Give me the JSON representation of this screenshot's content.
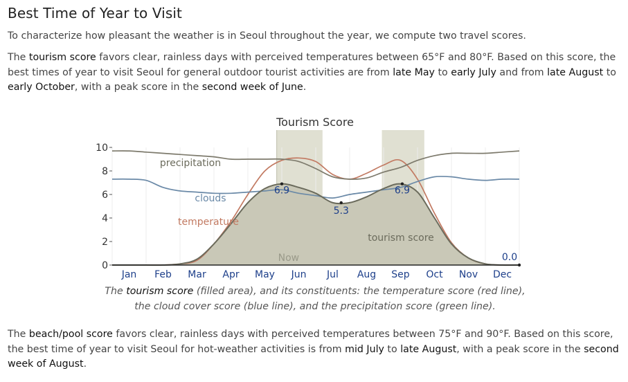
{
  "heading": "Best Time of Year to Visit",
  "intro": "To characterize how pleasant the weather is in Seoul throughout the year, we compute two travel scores.",
  "tourism_paragraph": {
    "p1": "The ",
    "score_name": "tourism score",
    "p2": " favors clear, rainless days with perceived temperatures between 65°F and 80°F. Based on this score, the best times of year to visit Seoul for general outdoor tourist activities are from ",
    "range1_start": "late May",
    "p3": " to ",
    "range1_end": "early July",
    "p4": " and from ",
    "range2_start": "late August",
    "p5": " to ",
    "range2_end": "early October",
    "p6": ", with a peak score in the ",
    "peak": "second week of June",
    "p7": "."
  },
  "caption": {
    "c1": "The ",
    "score_name": "tourism score",
    "c2": " (filled area), and its constituents: the temperature score (red line), the cloud cover score (blue line), and the precipitation score (green line)."
  },
  "beach_paragraph": {
    "p1": "The ",
    "score_name": "beach/pool score",
    "p2": " favors clear, rainless days with perceived temperatures between 75°F and 90°F. Based on this score, the best time of year to visit Seoul for hot-weather activities is from ",
    "range_start": "mid July",
    "p3": " to ",
    "range_end": "late August",
    "p4": ", with a peak score in the ",
    "peak": "second week of August",
    "p5": "."
  },
  "chart_data": {
    "type": "area",
    "title": "Tourism Score",
    "x_unit": "month",
    "xlim": [
      0,
      12
    ],
    "ylim": [
      0,
      10
    ],
    "y_ticks": [
      "0",
      "2",
      "4",
      "6",
      "8",
      "10"
    ],
    "x_tick_labels": [
      "Jan",
      "Feb",
      "Mar",
      "Apr",
      "May",
      "Jun",
      "Jul",
      "Aug",
      "Sep",
      "Oct",
      "Nov",
      "Dec"
    ],
    "now_label": "Now",
    "now_x": 4.85,
    "highlight_ranges": [
      [
        4.85,
        6.2
      ],
      [
        7.95,
        9.2
      ]
    ],
    "x": [
      0,
      0.5,
      1,
      1.5,
      2,
      2.5,
      3,
      3.5,
      4,
      4.5,
      5,
      5.5,
      6,
      6.5,
      7,
      7.5,
      8,
      8.5,
      9,
      9.5,
      10,
      10.5,
      11,
      11.5,
      12
    ],
    "series": [
      {
        "name": "tourism score",
        "color": "#6b6b5c",
        "fill": "#c9c8b7",
        "values": [
          0,
          0,
          0,
          0,
          0.1,
          0.5,
          1.8,
          3.5,
          5.3,
          6.5,
          6.9,
          6.6,
          6.1,
          5.3,
          5.3,
          5.8,
          6.5,
          6.9,
          6.2,
          4.0,
          1.8,
          0.6,
          0.1,
          0,
          0
        ]
      },
      {
        "name": "temperature",
        "color": "#c27a62",
        "values": [
          0,
          0,
          0,
          0,
          0.1,
          0.4,
          1.8,
          3.7,
          6.0,
          8.0,
          8.9,
          9.1,
          8.8,
          7.7,
          7.3,
          7.8,
          8.5,
          8.9,
          7.3,
          4.4,
          1.9,
          0.6,
          0.1,
          0,
          0
        ]
      },
      {
        "name": "clouds",
        "color": "#6a89a7",
        "values": [
          7.3,
          7.3,
          7.2,
          6.6,
          6.3,
          6.2,
          6.1,
          6.1,
          6.2,
          6.3,
          6.4,
          6.1,
          5.9,
          5.7,
          6.0,
          6.2,
          6.4,
          6.6,
          7.1,
          7.5,
          7.5,
          7.3,
          7.2,
          7.3,
          7.3
        ]
      },
      {
        "name": "precipitation",
        "color": "#7d7a6c",
        "values": [
          9.7,
          9.7,
          9.6,
          9.5,
          9.4,
          9.3,
          9.2,
          9.0,
          9.0,
          9.0,
          9.0,
          8.8,
          8.2,
          7.5,
          7.3,
          7.4,
          7.9,
          8.3,
          8.9,
          9.3,
          9.5,
          9.5,
          9.5,
          9.6,
          9.7
        ]
      }
    ],
    "annotations": [
      {
        "text": "6.9",
        "x": 5.0,
        "y": 6.9
      },
      {
        "text": "5.3",
        "x": 6.75,
        "y": 5.3
      },
      {
        "text": "6.9",
        "x": 8.55,
        "y": 6.9
      },
      {
        "text": "0.0",
        "x": 12,
        "y": 0
      }
    ]
  }
}
